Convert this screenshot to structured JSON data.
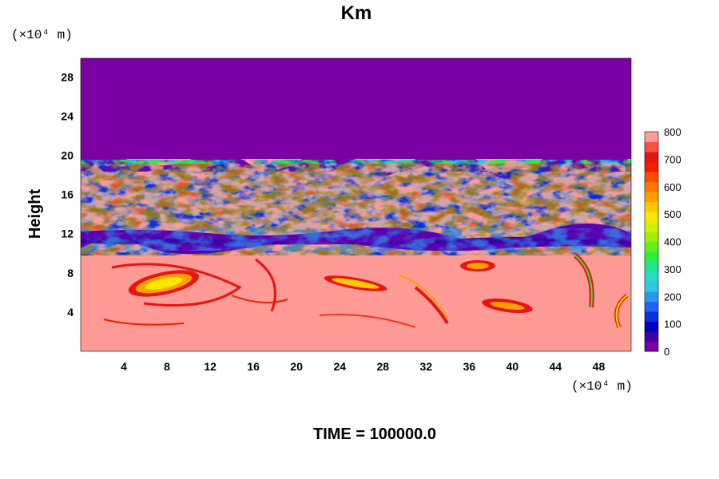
{
  "chart_data": {
    "type": "heatmap",
    "title": "Km",
    "ylabel": "Height",
    "xlabel": "",
    "x_unit_label": "(×10⁴ m)",
    "y_unit_label": "(×10⁴ m)",
    "footer": "TIME = 100000.0",
    "xlim": [
      0,
      51
    ],
    "ylim": [
      0,
      29.9
    ],
    "x_ticks": [
      4,
      8,
      12,
      16,
      20,
      24,
      28,
      32,
      36,
      40,
      44,
      48
    ],
    "y_ticks": [
      4,
      8,
      12,
      16,
      20,
      24,
      28
    ],
    "colorbar": {
      "range": [
        0,
        800
      ],
      "tick_values": [
        0,
        100,
        200,
        300,
        400,
        500,
        600,
        700,
        800
      ],
      "tick_labels": [
        "0",
        "100",
        "200",
        "300",
        "400",
        "500",
        "600",
        "700",
        "800"
      ],
      "colors": [
        "#7a00a3",
        "#3c00a8",
        "#0000c6",
        "#0a2fe0",
        "#1e64f0",
        "#2d96f0",
        "#2ec8e6",
        "#26dcc4",
        "#1ee68c",
        "#28f03c",
        "#64f014",
        "#a0f000",
        "#d2f000",
        "#fae600",
        "#ffc800",
        "#ffa000",
        "#ff7800",
        "#ff4b00",
        "#f01e00",
        "#e61414",
        "#fa5046",
        "#ff9a94"
      ]
    },
    "regions": [
      {
        "description_level": "0",
        "y_range": [
          19.5,
          29.9
        ]
      },
      {
        "description_level": "800",
        "y_range": [
          0,
          9.5
        ]
      }
    ]
  }
}
